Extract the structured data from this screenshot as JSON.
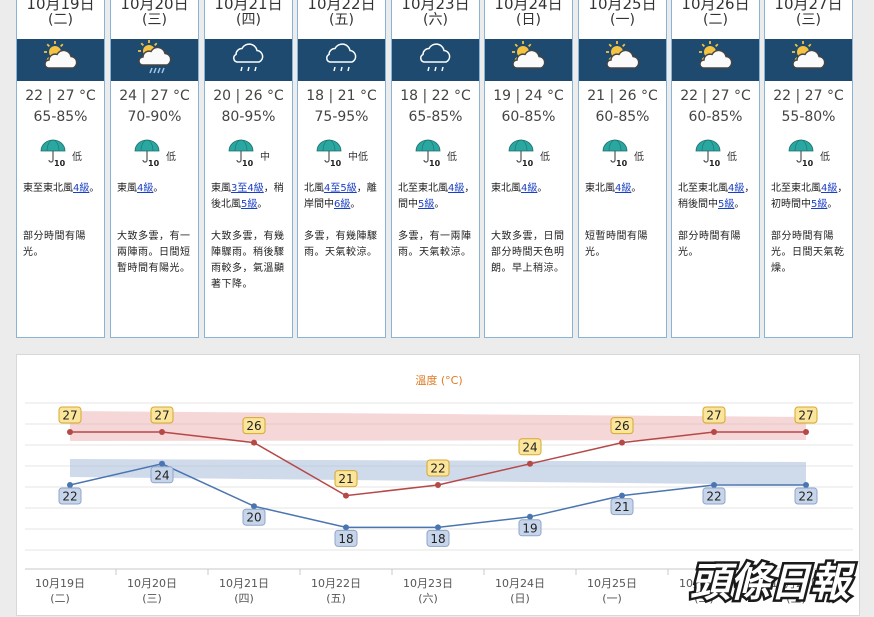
{
  "days": [
    {
      "date": "10月19日",
      "wday": "(二)",
      "weather_icon": "sun-cloud-icon",
      "temp": "22 | 27 °C",
      "hum": "65-85%",
      "psr": "低",
      "wind_pre": "東至東北風",
      "wind_link1": "4級",
      "wind_mid": "",
      "wind_link2": "",
      "wind_post": "。",
      "desc": "部分時間有陽光。"
    },
    {
      "date": "10月20日",
      "wday": "(三)",
      "weather_icon": "sun-cloud-rain-icon",
      "temp": "24 | 27 °C",
      "hum": "70-90%",
      "psr": "低",
      "wind_pre": "東風",
      "wind_link1": "4級",
      "wind_mid": "",
      "wind_link2": "",
      "wind_post": "。",
      "desc": "大致多雲，有一兩陣雨。日間短暫時間有陽光。"
    },
    {
      "date": "10月21日",
      "wday": "(四)",
      "weather_icon": "cloud-rain-icon",
      "temp": "20 | 26 °C",
      "hum": "80-95%",
      "psr": "中",
      "wind_pre": "東風",
      "wind_link1": "3至4級",
      "wind_mid": "，稍後北風",
      "wind_link2": "5級",
      "wind_post": "。",
      "desc": "大致多雲，有幾陣驟雨。稍後驟雨較多，氣溫顯著下降。"
    },
    {
      "date": "10月22日",
      "wday": "(五)",
      "weather_icon": "cloud-rain-icon",
      "temp": "18 | 21 °C",
      "hum": "75-95%",
      "psr": "中低",
      "wind_pre": "北風",
      "wind_link1": "4至5級",
      "wind_mid": "，離岸間中",
      "wind_link2": "6級",
      "wind_post": "。",
      "desc": "多雲，有幾陣驟雨。天氣較涼。"
    },
    {
      "date": "10月23日",
      "wday": "(六)",
      "weather_icon": "cloud-rain-icon",
      "temp": "18 | 22 °C",
      "hum": "65-85%",
      "psr": "低",
      "wind_pre": "北至東北風",
      "wind_link1": "4級",
      "wind_mid": "，間中",
      "wind_link2": "5級",
      "wind_post": "。",
      "desc": "多雲，有一兩陣雨。天氣較涼。"
    },
    {
      "date": "10月24日",
      "wday": "(日)",
      "weather_icon": "sun-cloud-icon",
      "temp": "19 | 24 °C",
      "hum": "60-85%",
      "psr": "低",
      "wind_pre": "東北風",
      "wind_link1": "4級",
      "wind_mid": "",
      "wind_link2": "",
      "wind_post": "。",
      "desc": "大致多雲，日間部分時間天色明朗。早上稍涼。"
    },
    {
      "date": "10月25日",
      "wday": "(一)",
      "weather_icon": "sun-cloud-icon",
      "temp": "21 | 26 °C",
      "hum": "60-85%",
      "psr": "低",
      "wind_pre": "東北風",
      "wind_link1": "4級",
      "wind_mid": "",
      "wind_link2": "",
      "wind_post": "。",
      "desc": "短暫時間有陽光。"
    },
    {
      "date": "10月26日",
      "wday": "(二)",
      "weather_icon": "sun-cloud-icon",
      "temp": "22 | 27 °C",
      "hum": "60-85%",
      "psr": "低",
      "wind_pre": "北至東北風",
      "wind_link1": "4級",
      "wind_mid": "，稍後間中",
      "wind_link2": "5級",
      "wind_post": "。",
      "desc": "部分時間有陽光。"
    },
    {
      "date": "10月27日",
      "wday": "(三)",
      "weather_icon": "sun-cloud-icon",
      "temp": "22 | 27 °C",
      "hum": "55-80%",
      "psr": "低",
      "wind_pre": "北至東北風",
      "wind_link1": "4級",
      "wind_mid": "，初時間中",
      "wind_link2": "5級",
      "wind_post": "。",
      "desc": "部分時間有陽光。日間天氣乾燥。"
    }
  ],
  "chart_data": {
    "type": "line",
    "title": "溫度 (°C)",
    "categories": [
      "10月19日",
      "10月20日",
      "10月21日",
      "10月22日",
      "10月23日",
      "10月24日",
      "10月25日",
      "10月26日",
      "10月27日"
    ],
    "category_sub": [
      "(二)",
      "(三)",
      "(四)",
      "(五)",
      "(六)",
      "(日)",
      "(一)",
      "(二)",
      "(三)"
    ],
    "series": [
      {
        "values": [
          27,
          27,
          26,
          21,
          22,
          24,
          26,
          27,
          27
        ],
        "color": "#b64848"
      },
      {
        "values": [
          22,
          24,
          20,
          18,
          18,
          19,
          21,
          22,
          22
        ],
        "color": "#4a75b0"
      }
    ],
    "ylim": [
      15,
      30
    ],
    "grid": true
  },
  "watermark": "頭條日報"
}
